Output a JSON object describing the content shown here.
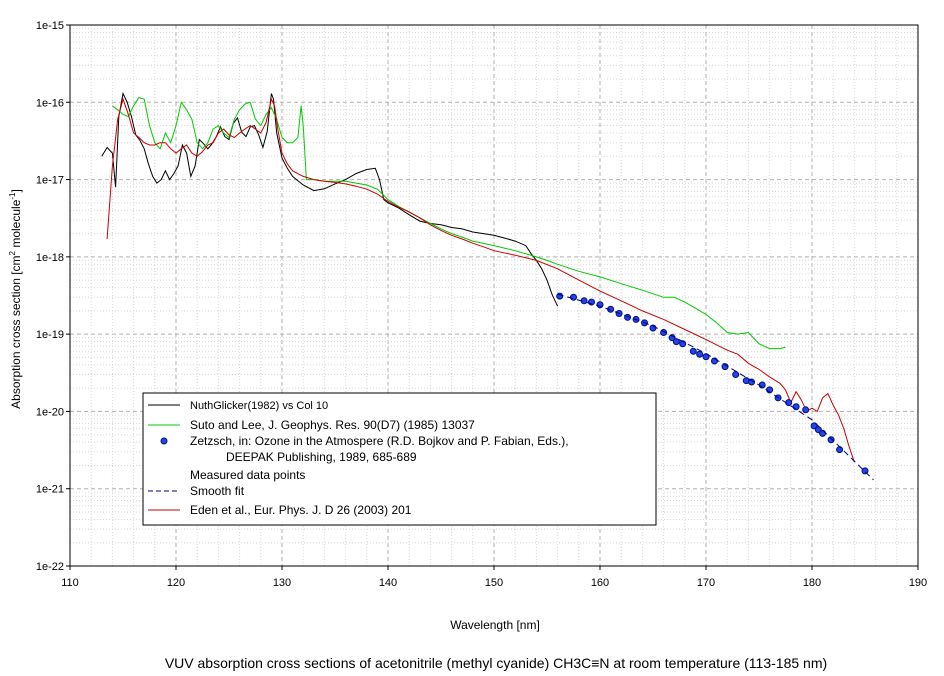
{
  "chart_data": {
    "type": "line",
    "title": "VUV absorption cross sections of acetonitrile (methyl cyanide) CH3C≡N at room temperature (113-185 nm)",
    "xlabel": "Wavelength [nm]",
    "ylabel_main": "Absorption cross section [cm",
    "ylabel_sup1": "2",
    "ylabel_mid": " molecule",
    "ylabel_sup2": "-1",
    "ylabel_end": "]",
    "xlim": [
      110,
      190
    ],
    "ylim": [
      1e-22,
      1e-15
    ],
    "yscale": "log",
    "grid": true,
    "x_ticks": [
      "110",
      "120",
      "130",
      "140",
      "150",
      "160",
      "170",
      "180",
      "190"
    ],
    "y_ticks": [
      "1e-22",
      "1e-21",
      "1e-20",
      "1e-19",
      "1e-18",
      "1e-17",
      "1e-16",
      "1e-15"
    ],
    "legend": {
      "position": "lower-left",
      "entries": [
        {
          "label": "NuthGlicker(1982) vs Col 10",
          "color": "#000000",
          "style": "line"
        },
        {
          "label": "Suto and Lee, J. Geophys. Res. 90(D7) (1985) 13037",
          "color": "#00cc00",
          "style": "line"
        },
        {
          "label": "Zetzsch, in: Ozone in the Atmospere (R.D. Bojkov and P. Fabian, Eds.),",
          "label2": "DEEPAK Publishing, 1989, 685-689",
          "color": "#2244ee",
          "style": "marker"
        },
        {
          "label": "Measured data points",
          "color": "#000000",
          "style": "none"
        },
        {
          "label": "Smooth fit",
          "color": "#000080",
          "style": "dashed"
        },
        {
          "label": "Eden et al., Eur. Phys. J. D 26 (2003) 201",
          "color": "#cc0000",
          "style": "line"
        }
      ]
    },
    "series": [
      {
        "name": "NuthGlicker(1982) vs Col 10",
        "color": "#000000",
        "x": [
          113.0,
          113.5,
          114.0,
          114.3,
          114.6,
          115.0,
          115.4,
          115.8,
          116.2,
          116.6,
          117.0,
          117.4,
          117.8,
          118.2,
          118.6,
          119.0,
          119.4,
          119.8,
          120.2,
          120.6,
          121.0,
          121.4,
          121.8,
          122.2,
          122.6,
          123.0,
          123.4,
          123.8,
          124.2,
          124.6,
          125.0,
          125.4,
          125.8,
          126.2,
          126.6,
          127.0,
          127.4,
          127.8,
          128.2,
          128.6,
          129.0,
          129.2,
          129.5,
          130.0,
          130.5,
          131.0,
          132.0,
          133.0,
          134.0,
          135.0,
          136.0,
          137.0,
          138.0,
          138.8,
          139.2,
          139.6,
          140.0,
          141.0,
          142.0,
          143.0,
          144.0,
          145.0,
          146.0,
          147.0,
          148.0,
          149.0,
          150.0,
          151.0,
          152.0,
          153.0,
          153.5,
          154.0,
          154.5,
          155.0,
          155.5,
          156.0
        ],
        "y": [
          2e-17,
          2.6e-17,
          2.2e-17,
          8e-18,
          6.5e-17,
          1.3e-16,
          1e-16,
          6.5e-17,
          3.8e-17,
          3.2e-17,
          2.5e-17,
          1.6e-17,
          1.1e-17,
          9e-18,
          1e-17,
          1.3e-17,
          1e-17,
          1.2e-17,
          1.5e-17,
          2.8e-17,
          2.2e-17,
          1.1e-17,
          1.5e-17,
          3.3e-17,
          2.9e-17,
          2.5e-17,
          2.9e-17,
          3.6e-17,
          4.8e-17,
          3.6e-17,
          3.3e-17,
          5.3e-17,
          6.3e-17,
          4.1e-17,
          3.6e-17,
          4.8e-17,
          5e-17,
          3.8e-17,
          2.6e-17,
          4.2e-17,
          1.3e-16,
          1.1e-16,
          4e-17,
          1.9e-17,
          1.4e-17,
          1.1e-17,
          8.5e-18,
          7.2e-18,
          7.6e-18,
          8.8e-18,
          1e-17,
          1.2e-17,
          1.35e-17,
          1.4e-17,
          1e-17,
          5.5e-18,
          5e-18,
          4.3e-18,
          3.5e-18,
          2.9e-18,
          2.7e-18,
          2.6e-18,
          2.4e-18,
          2.3e-18,
          2.1e-18,
          2e-18,
          1.9e-18,
          1.75e-18,
          1.6e-18,
          1.4e-18,
          1.1e-18,
          9e-19,
          7e-19,
          5e-19,
          3.2e-19,
          2.3e-19
        ]
      },
      {
        "name": "Suto and Lee, J. Geophys. Res. 90(D7) (1985) 13037",
        "color": "#00cc00",
        "x": [
          114.0,
          114.5,
          115.0,
          115.5,
          116.0,
          116.5,
          117.0,
          117.5,
          118.0,
          118.5,
          119.0,
          119.5,
          120.0,
          120.5,
          121.0,
          121.5,
          122.0,
          122.5,
          123.0,
          123.5,
          124.0,
          124.5,
          125.0,
          125.5,
          126.0,
          126.5,
          127.0,
          127.5,
          128.0,
          128.5,
          129.0,
          129.5,
          130.0,
          130.5,
          131.0,
          131.5,
          131.8,
          132.0,
          132.3,
          133.0,
          134.0,
          135.0,
          136.0,
          137.0,
          138.0,
          139.0,
          140.0,
          141.0,
          142.0,
          143.0,
          144.0,
          145.0,
          146.0,
          147.0,
          148.0,
          150.0,
          152.0,
          154.0,
          155.0,
          156.0,
          158.0,
          160.0,
          162.0,
          164.0,
          166.0,
          167.0,
          168.0,
          170.0,
          171.0,
          172.0,
          173.0,
          174.0,
          175.0,
          176.0,
          177.0,
          177.5
        ],
        "y": [
          9e-17,
          8e-17,
          7e-17,
          6.5e-17,
          9e-17,
          1.15e-16,
          1.1e-16,
          5e-17,
          3e-17,
          2.5e-17,
          4e-17,
          3e-17,
          5e-17,
          1e-16,
          8e-17,
          6e-17,
          3e-17,
          2.5e-17,
          3e-17,
          4.5e-17,
          5e-17,
          4e-17,
          3.5e-17,
          6e-17,
          8e-17,
          9.5e-17,
          1e-16,
          6e-17,
          5e-17,
          7e-17,
          8.5e-17,
          6e-17,
          3.5e-17,
          3e-17,
          3e-17,
          3.5e-17,
          9e-17,
          5e-17,
          1e-17,
          1e-17,
          9.5e-18,
          9.5e-18,
          9.5e-18,
          9e-18,
          8.5e-18,
          7.5e-18,
          5.5e-18,
          4.5e-18,
          3.8e-18,
          3.2e-18,
          2.7e-18,
          2.3e-18,
          2e-18,
          1.8e-18,
          1.6e-18,
          1.4e-18,
          1.2e-18,
          1e-18,
          9e-19,
          8e-19,
          6.5e-19,
          5.5e-19,
          4.5e-19,
          3.7e-19,
          3e-19,
          3e-19,
          2.6e-19,
          1.8e-19,
          1.4e-19,
          1.05e-19,
          1e-19,
          1.05e-19,
          7.5e-20,
          6.5e-20,
          6.5e-20,
          6.8e-20
        ]
      },
      {
        "name": "Eden et al., Eur. Phys. J. D 26 (2003) 201",
        "color": "#cc0000",
        "x": [
          113.5,
          114.0,
          114.5,
          115.0,
          115.5,
          116.0,
          116.5,
          117.0,
          117.5,
          118.0,
          118.5,
          119.0,
          119.5,
          120.0,
          120.5,
          121.0,
          121.5,
          122.0,
          122.5,
          123.0,
          123.5,
          124.0,
          124.5,
          125.0,
          125.5,
          126.0,
          126.5,
          127.0,
          127.5,
          128.0,
          128.5,
          129.0,
          129.3,
          129.6,
          130.0,
          130.5,
          131.0,
          132.0,
          133.0,
          134.0,
          135.0,
          136.0,
          137.0,
          138.0,
          139.0,
          140.0,
          141.0,
          142.0,
          143.0,
          144.0,
          145.0,
          146.0,
          147.0,
          148.0,
          149.0,
          150.0,
          152.0,
          154.0,
          156.0,
          158.0,
          160.0,
          162.0,
          164.0,
          166.0,
          168.0,
          170.0,
          172.0,
          173.0,
          174.0,
          175.0,
          176.0,
          177.0,
          177.5,
          178.0,
          178.5,
          179.0,
          179.5,
          180.0,
          180.5,
          181.0,
          181.5,
          182.0,
          182.5,
          183.0,
          183.5,
          184.0
        ],
        "y": [
          1.7e-18,
          1.5e-17,
          6e-17,
          1.1e-16,
          7e-17,
          4e-17,
          3.5e-17,
          3e-17,
          2.8e-17,
          2.8e-17,
          3e-17,
          3e-17,
          2.5e-17,
          2.2e-17,
          2.5e-17,
          2.8e-17,
          2.2e-17,
          2e-17,
          2.3e-17,
          2.8e-17,
          3e-17,
          4e-17,
          4.5e-17,
          3.8e-17,
          3.5e-17,
          4e-17,
          4.5e-17,
          5e-17,
          4.5e-17,
          4e-17,
          5.5e-17,
          1.1e-16,
          9e-17,
          4.5e-17,
          2.2e-17,
          1.6e-17,
          1.3e-17,
          1.1e-17,
          1e-17,
          9.5e-18,
          9.2e-18,
          8.8e-18,
          8.2e-18,
          7.5e-18,
          6.5e-18,
          5.2e-18,
          4.4e-18,
          3.8e-18,
          3.2e-18,
          2.6e-18,
          2.2e-18,
          1.9e-18,
          1.7e-18,
          1.5e-18,
          1.35e-18,
          1.2e-18,
          1.05e-18,
          9e-19,
          7e-19,
          5e-19,
          3.6e-19,
          2.7e-19,
          2e-19,
          1.55e-19,
          1.15e-19,
          8.5e-20,
          6.2e-20,
          5.5e-20,
          4.2e-20,
          3.5e-20,
          2.8e-20,
          2.3e-20,
          1.9e-20,
          1.3e-20,
          1.8e-20,
          1.4e-20,
          1e-20,
          1.1e-20,
          1e-20,
          1.5e-20,
          1.7e-20,
          1.2e-20,
          9e-21,
          6e-21,
          3.5e-21,
          2.2e-21
        ]
      },
      {
        "name": "Measured data points",
        "color": "#2244ee",
        "x": [
          156.2,
          157.5,
          158.5,
          159.2,
          160.0,
          161.0,
          161.8,
          162.6,
          163.4,
          164.2,
          165.0,
          166.0,
          166.8,
          167.2,
          167.8,
          168.8,
          169.4,
          170.0,
          170.8,
          171.8,
          172.8,
          173.8,
          174.3,
          175.3,
          176.0,
          176.8,
          177.8,
          178.5,
          179.4,
          180.2,
          180.6,
          181.0,
          181.8,
          182.6,
          185.0
        ],
        "y": [
          3.1e-19,
          3e-19,
          2.7e-19,
          2.6e-19,
          2.4e-19,
          2.1e-19,
          1.85e-19,
          1.65e-19,
          1.55e-19,
          1.4e-19,
          1.2e-19,
          1.05e-19,
          9e-20,
          8e-20,
          7.5e-20,
          6e-20,
          5.5e-20,
          5.1e-20,
          4.5e-20,
          3.8e-20,
          3e-20,
          2.5e-20,
          2.4e-20,
          2.2e-20,
          1.9e-20,
          1.5e-20,
          1.3e-20,
          1.15e-20,
          1.05e-20,
          6.5e-21,
          5.8e-21,
          5.2e-21,
          4.3e-21,
          3.2e-21,
          1.7e-21
        ]
      },
      {
        "name": "Smooth fit",
        "color": "#000080",
        "x": [
          156.0,
          160.0,
          165.0,
          170.0,
          175.0,
          180.0,
          185.8
        ],
        "y": [
          3.3e-19,
          2.3e-19,
          1.28e-19,
          5.6e-20,
          2.2e-20,
          7.8e-21,
          1.3e-21
        ]
      }
    ]
  }
}
